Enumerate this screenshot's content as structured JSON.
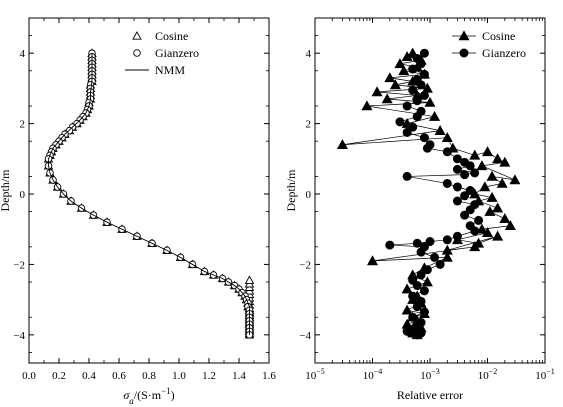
{
  "chart_data": [
    {
      "type": "line",
      "xlabel": "σa/(S·m⁻¹)",
      "xlabel_main": "σ",
      "xlabel_sub": "a",
      "xlabel_rest": "/(S·m",
      "xlabel_sup": "−1",
      "xlabel_close": ")",
      "ylabel": "Depth/m",
      "xlim": [
        0.0,
        1.6
      ],
      "ylim": [
        -4.8,
        5.0
      ],
      "xticks": [
        0.0,
        0.2,
        0.4,
        0.6,
        0.8,
        1.0,
        1.2,
        1.4,
        1.6
      ],
      "xtick_labels": [
        "0.0",
        "0.2",
        "0.4",
        "0.6",
        "0.8",
        "1.0",
        "1.2",
        "1.4",
        "1.6"
      ],
      "yticks": [
        -4,
        -2,
        0,
        2,
        4
      ],
      "ytick_labels": [
        "−4",
        "−2",
        "0",
        "2",
        "4"
      ],
      "grid": false,
      "legend_position": "top-right",
      "series": [
        {
          "name": "Cosine",
          "marker": "triangle-open",
          "x": [
            0.42,
            0.42,
            0.42,
            0.42,
            0.42,
            0.42,
            0.42,
            0.42,
            0.42,
            0.41,
            0.41,
            0.41,
            0.41,
            0.41,
            0.4,
            0.4,
            0.39,
            0.38,
            0.36,
            0.34,
            0.32,
            0.29,
            0.27,
            0.24,
            0.22,
            0.2,
            0.18,
            0.16,
            0.15,
            0.14,
            0.13,
            0.13,
            0.14,
            0.16,
            0.19,
            0.23,
            0.28,
            0.35,
            0.43,
            0.52,
            0.62,
            0.72,
            0.82,
            0.92,
            1.01,
            1.09,
            1.17,
            1.23,
            1.29,
            1.33,
            1.37,
            1.4,
            1.42,
            1.44,
            1.45,
            1.46,
            1.46,
            1.47,
            1.47,
            1.47,
            1.47,
            1.47,
            1.47,
            1.47,
            1.47,
            1.47,
            1.47,
            1.47,
            1.47,
            1.47,
            1.47,
            1.47,
            1.47,
            1.47,
            1.47,
            1.47,
            1.47,
            1.47,
            1.47,
            1.47,
            1.47
          ],
          "y": [
            4.0,
            3.9,
            3.8,
            3.7,
            3.6,
            3.5,
            3.4,
            3.3,
            3.2,
            3.1,
            3.0,
            2.9,
            2.8,
            2.7,
            2.6,
            2.5,
            2.4,
            2.3,
            2.2,
            2.1,
            2.0,
            1.9,
            1.8,
            1.7,
            1.6,
            1.5,
            1.4,
            1.3,
            1.2,
            1.1,
            1.0,
            0.8,
            0.6,
            0.4,
            0.2,
            0.0,
            -0.2,
            -0.4,
            -0.6,
            -0.8,
            -1.0,
            -1.2,
            -1.4,
            -1.6,
            -1.8,
            -2.0,
            -2.2,
            -2.3,
            -2.4,
            -2.5,
            -2.6,
            -2.7,
            -2.8,
            -2.9,
            -3.0,
            -3.1,
            -3.2,
            -3.3,
            -3.4,
            -3.5,
            -3.6,
            -3.7,
            -3.8,
            -3.9,
            -4.0,
            -3.95,
            -3.85,
            -3.75,
            -3.65,
            -3.55,
            -3.45,
            -3.35,
            -3.25,
            -3.15,
            -3.05,
            -2.95,
            -2.85,
            -2.75,
            -2.65,
            -2.55,
            -2.45
          ]
        },
        {
          "name": "Gianzero",
          "marker": "circle-open",
          "x": [
            0.42,
            0.42,
            0.42,
            0.42,
            0.42,
            0.42,
            0.42,
            0.42,
            0.42,
            0.41,
            0.41,
            0.41,
            0.41,
            0.41,
            0.4,
            0.4,
            0.39,
            0.38,
            0.36,
            0.34,
            0.32,
            0.29,
            0.27,
            0.24,
            0.22,
            0.2,
            0.18,
            0.16,
            0.15,
            0.14,
            0.13,
            0.13,
            0.14,
            0.16,
            0.19,
            0.23,
            0.28,
            0.35,
            0.43,
            0.52,
            0.62,
            0.72,
            0.82,
            0.92,
            1.01,
            1.09,
            1.17,
            1.23,
            1.29,
            1.33,
            1.37,
            1.4,
            1.42,
            1.44,
            1.45,
            1.46,
            1.46,
            1.47,
            1.47,
            1.47,
            1.47,
            1.47,
            1.47,
            1.47,
            1.47
          ],
          "y": [
            4.0,
            3.9,
            3.8,
            3.7,
            3.6,
            3.5,
            3.4,
            3.3,
            3.2,
            3.1,
            3.0,
            2.9,
            2.8,
            2.7,
            2.6,
            2.5,
            2.4,
            2.3,
            2.2,
            2.1,
            2.0,
            1.9,
            1.8,
            1.7,
            1.6,
            1.5,
            1.4,
            1.3,
            1.2,
            1.1,
            1.0,
            0.8,
            0.6,
            0.4,
            0.2,
            0.0,
            -0.2,
            -0.4,
            -0.6,
            -0.8,
            -1.0,
            -1.2,
            -1.4,
            -1.6,
            -1.8,
            -2.0,
            -2.2,
            -2.3,
            -2.4,
            -2.5,
            -2.6,
            -2.7,
            -2.8,
            -2.9,
            -3.0,
            -3.1,
            -3.2,
            -3.3,
            -3.4,
            -3.5,
            -3.6,
            -3.7,
            -3.8,
            -3.9,
            -4.0
          ]
        },
        {
          "name": "NMM",
          "marker": "line",
          "x": [
            0.42,
            0.42,
            0.42,
            0.41,
            0.41,
            0.4,
            0.38,
            0.34,
            0.29,
            0.24,
            0.2,
            0.16,
            0.14,
            0.13,
            0.13,
            0.14,
            0.16,
            0.19,
            0.23,
            0.28,
            0.35,
            0.43,
            0.52,
            0.62,
            0.72,
            0.82,
            0.92,
            1.01,
            1.09,
            1.17,
            1.23,
            1.29,
            1.33,
            1.37,
            1.4,
            1.42,
            1.44,
            1.45,
            1.46,
            1.47,
            1.47,
            1.47,
            1.47
          ],
          "y": [
            4.0,
            3.6,
            3.2,
            2.9,
            2.7,
            2.5,
            2.3,
            2.1,
            1.9,
            1.7,
            1.5,
            1.3,
            1.1,
            1.0,
            0.8,
            0.6,
            0.4,
            0.2,
            0.0,
            -0.2,
            -0.4,
            -0.6,
            -0.8,
            -1.0,
            -1.2,
            -1.4,
            -1.6,
            -1.8,
            -2.0,
            -2.2,
            -2.3,
            -2.4,
            -2.5,
            -2.6,
            -2.7,
            -2.8,
            -2.9,
            -3.0,
            -3.1,
            -3.2,
            -3.4,
            -3.7,
            -4.0
          ]
        }
      ]
    },
    {
      "type": "line",
      "xlabel": "Relative error",
      "ylabel": "Depth/m",
      "xscale": "log",
      "xlim": [
        1e-05,
        0.1
      ],
      "ylim": [
        -4.8,
        5.0
      ],
      "xticks": [
        1e-05,
        0.0001,
        0.001,
        0.01,
        0.1
      ],
      "xtick_labels": [
        {
          "base": "10",
          "exp": "−5"
        },
        {
          "base": "10",
          "exp": "−4"
        },
        {
          "base": "10",
          "exp": "−3"
        },
        {
          "base": "10",
          "exp": "−2"
        },
        {
          "base": "10",
          "exp": "−1"
        }
      ],
      "yticks": [
        -4,
        -2,
        0,
        2,
        4
      ],
      "ytick_labels": [
        "−4",
        "−2",
        "0",
        "2",
        "4"
      ],
      "grid": false,
      "legend_position": "top-right",
      "series": [
        {
          "name": "Cosine",
          "marker": "triangle-filled",
          "x": [
            0.0005,
            0.0004,
            0.0007,
            0.0003,
            0.0006,
            0.00035,
            0.0008,
            0.0002,
            0.0005,
            0.00025,
            0.0009,
            0.00012,
            0.0006,
            0.00018,
            0.001,
            8e-05,
            0.0012,
            0.0004,
            0.0015,
            3e-05,
            0.002,
            0.0025,
            0.006,
            0.01,
            0.015,
            0.02,
            0.008,
            0.03,
            0.012,
            0.018,
            0.009,
            0.006,
            0.012,
            0.007,
            0.015,
            0.011,
            0.02,
            0.025,
            0.008,
            0.01,
            0.003,
            0.007,
            0.015,
            0.002,
            0.006,
            0.0001,
            0.002,
            0.0008,
            0.0005,
            0.0009,
            0.0004,
            0.0006,
            0.0005,
            0.0007,
            0.0004,
            0.0008,
            0.0005,
            0.0006,
            0.0004,
            0.0007,
            0.0005,
            0.0006,
            0.0005
          ],
          "y": [
            4.0,
            3.9,
            3.8,
            3.7,
            3.6,
            3.5,
            3.4,
            3.3,
            3.2,
            3.1,
            3.0,
            2.9,
            2.8,
            2.7,
            2.6,
            2.5,
            2.2,
            2.0,
            1.8,
            1.4,
            1.6,
            1.3,
            1.1,
            1.2,
            1.0,
            0.9,
            0.8,
            0.4,
            0.5,
            0.3,
            0.2,
            0.0,
            -0.1,
            -0.2,
            -0.4,
            -0.5,
            -0.7,
            -0.9,
            -1.0,
            -1.1,
            -1.3,
            -1.4,
            -1.2,
            -1.6,
            -1.5,
            -1.9,
            -1.8,
            -2.1,
            -2.3,
            -2.5,
            -2.7,
            -2.9,
            -3.0,
            -3.1,
            -3.3,
            -3.4,
            -3.5,
            -3.6,
            -3.7,
            -3.8,
            -3.9,
            -4.0,
            -3.95
          ]
        },
        {
          "name": "Gianzero",
          "marker": "circle-filled",
          "x": [
            0.0008,
            0.0006,
            0.0007,
            0.0005,
            0.0008,
            0.0006,
            0.0007,
            0.0005,
            0.0008,
            0.0006,
            0.0004,
            0.0007,
            0.0006,
            0.0003,
            0.0005,
            0.0004,
            0.0008,
            0.001,
            0.0009,
            0.002,
            0.003,
            0.004,
            0.005,
            0.003,
            0.006,
            0.004,
            0.0004,
            0.002,
            0.003,
            0.005,
            0.004,
            0.003,
            0.006,
            0.005,
            0.004,
            0.007,
            0.005,
            0.006,
            0.003,
            0.002,
            0.001,
            0.0006,
            0.0002,
            0.0008,
            0.0007,
            0.0012,
            0.0015,
            0.0009,
            0.0007,
            0.0005,
            0.0006,
            0.0008,
            0.0005,
            0.0007,
            0.0006,
            0.0008,
            0.0005,
            0.0007,
            0.0006,
            0.0005,
            0.0007,
            0.0006,
            0.0004,
            0.0006
          ],
          "y": [
            4.0,
            3.85,
            3.7,
            3.55,
            3.4,
            3.25,
            3.1,
            2.95,
            2.8,
            2.65,
            2.5,
            2.35,
            2.2,
            2.05,
            1.9,
            1.75,
            1.6,
            1.4,
            1.3,
            1.2,
            1.0,
            0.9,
            0.8,
            0.7,
            0.6,
            0.55,
            0.5,
            0.3,
            0.2,
            0.1,
            -0.05,
            -0.2,
            -0.3,
            -0.45,
            -0.6,
            -0.75,
            -0.9,
            -1.05,
            -1.2,
            -1.3,
            -1.35,
            -1.4,
            -1.45,
            -1.5,
            -1.65,
            -1.8,
            -2.0,
            -2.15,
            -2.3,
            -2.45,
            -2.6,
            -2.75,
            -2.9,
            -3.05,
            -3.2,
            -3.35,
            -3.5,
            -3.65,
            -3.75,
            -3.85,
            -3.95,
            -4.0,
            -3.9,
            -3.8
          ]
        }
      ]
    }
  ]
}
